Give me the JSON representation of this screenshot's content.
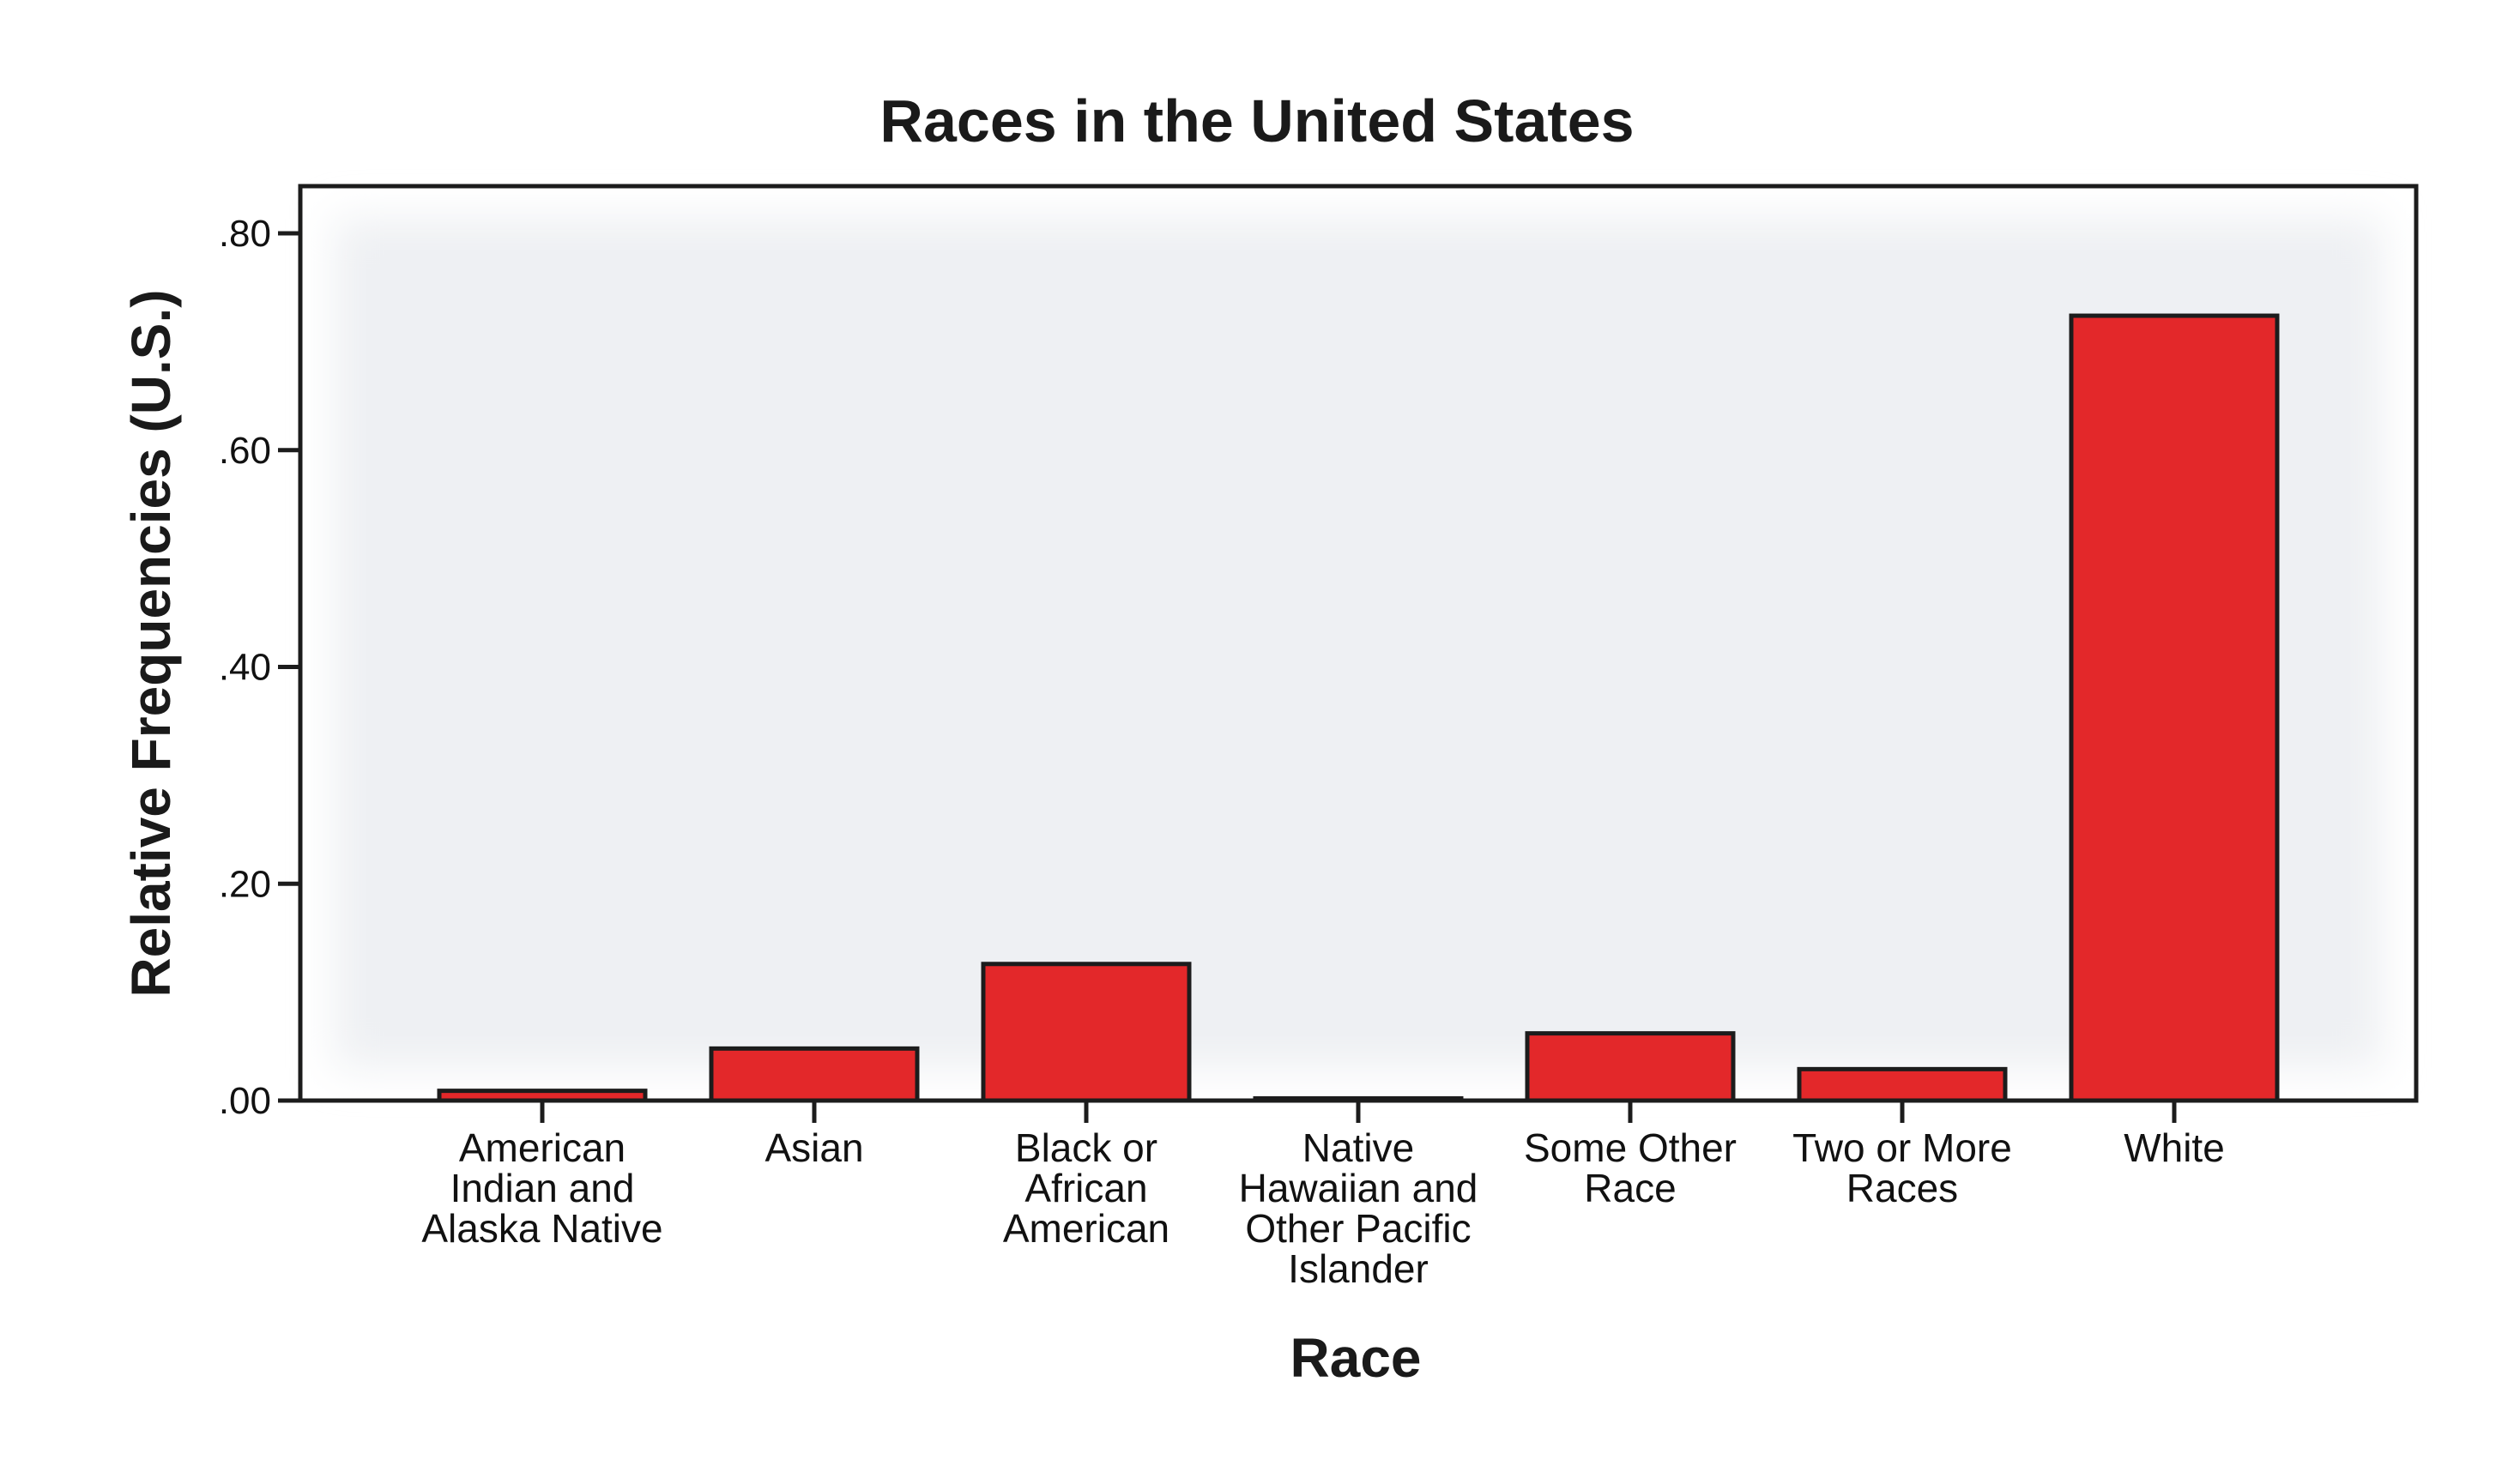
{
  "chart_data": {
    "type": "bar",
    "title": "Races in the United States",
    "xlabel": "Race",
    "ylabel": "Relative Frequencies (U.S.)",
    "categories": [
      "American Indian and Alaska Native",
      "Asian",
      "Black or African American",
      "Native Hawaiian and Other Pacific Islander",
      "Some Other Race",
      "Two or More Races",
      "White"
    ],
    "category_lines": [
      [
        "American",
        "Indian and",
        "Alaska Native"
      ],
      [
        "Asian"
      ],
      [
        "Black or",
        "African",
        "American"
      ],
      [
        "Native",
        "Hawaiian and",
        "Other Pacific",
        "Islander"
      ],
      [
        "Some Other",
        "Race"
      ],
      [
        "Two or More",
        "Races"
      ],
      [
        "White"
      ]
    ],
    "values": [
      0.009,
      0.048,
      0.126,
      0.002,
      0.062,
      0.029,
      0.724
    ],
    "ylim": [
      0,
      0.8
    ],
    "yticks": [
      0,
      0.2,
      0.4,
      0.6,
      0.8
    ],
    "ytick_labels": [
      ".00",
      ".20",
      ".40",
      ".60",
      ".80"
    ],
    "grid": false,
    "legend": "none",
    "bar_color": "#e3282a",
    "bar_outline_color": "#1c1c1c",
    "plot_background": "#f4f5f7"
  }
}
